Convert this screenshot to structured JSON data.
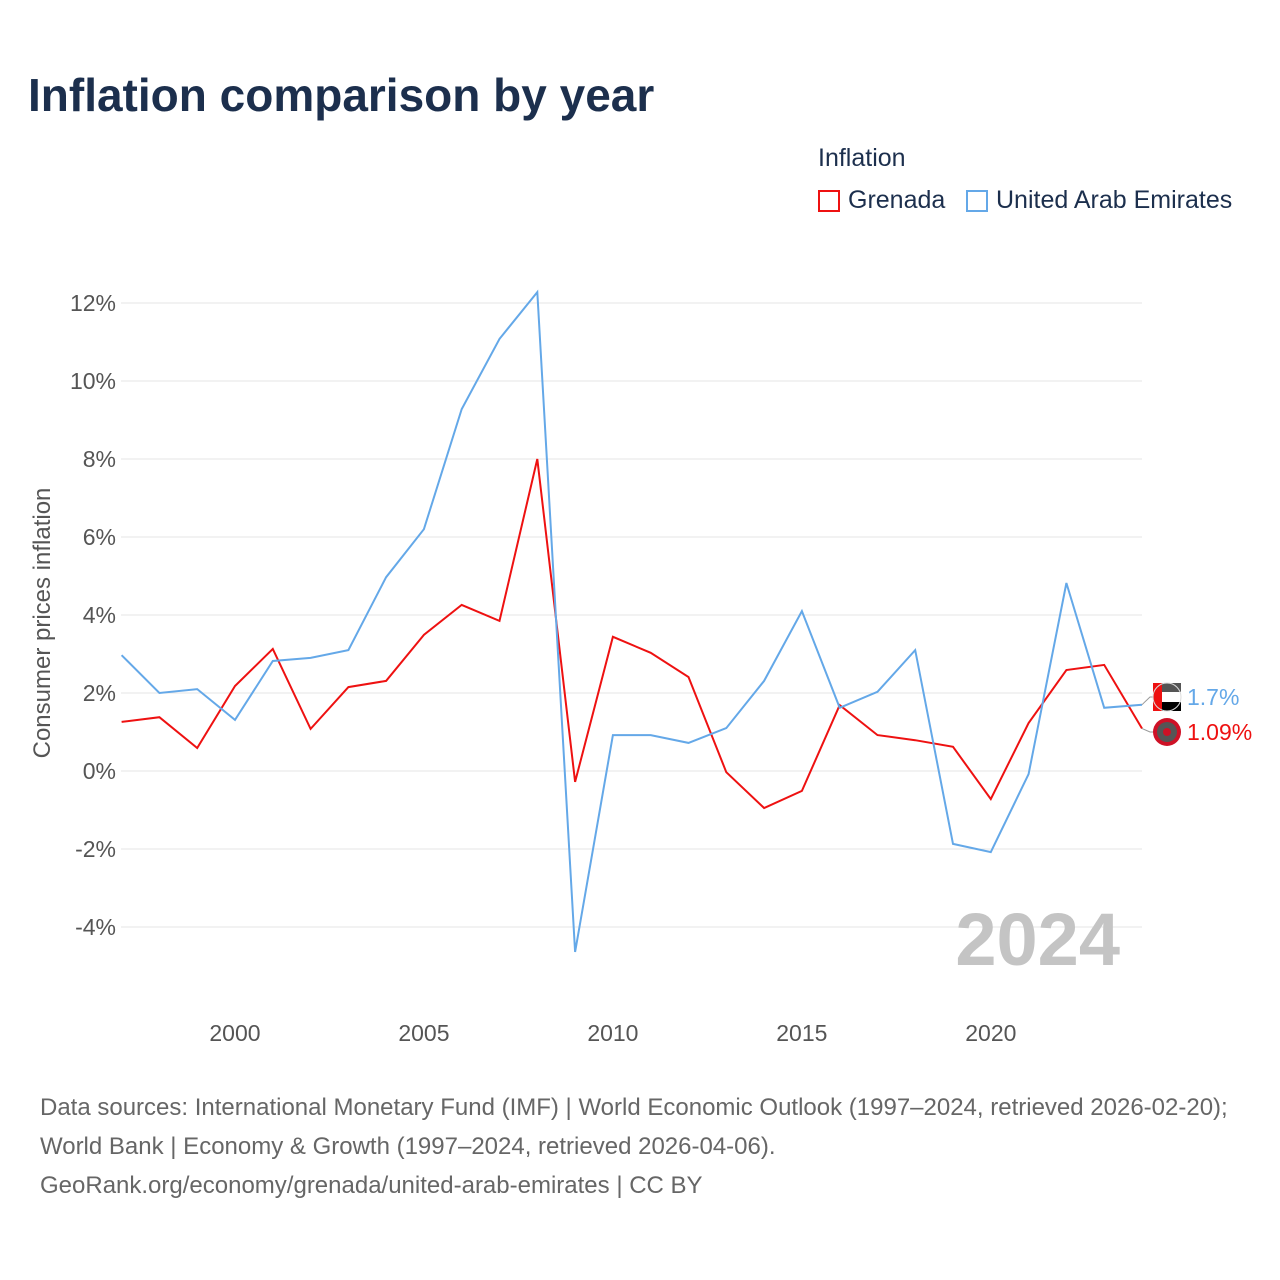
{
  "title": "Inflation comparison by year",
  "legend": {
    "title": "Inflation",
    "items": [
      {
        "label": "Grenada",
        "color": "#ee1111"
      },
      {
        "label": "United Arab Emirates",
        "color": "#64a8e8"
      }
    ]
  },
  "source_lines": [
    "Data sources: International Monetary Fund (IMF) | World Economic Outlook (1997–2024, retrieved 2026-02-20); World Bank | Economy & Growth (1997–2024, retrieved 2026-04-06).",
    "GeoRank.org/economy/grenada/united-arab-emirates | CC BY"
  ],
  "chart_data": {
    "type": "line",
    "title": "Inflation comparison by year",
    "ylabel": "Consumer prices inflation",
    "xlabel": "",
    "ylim": [
      -5.5,
      13
    ],
    "xlim": [
      1997,
      2024
    ],
    "yticks": [
      -4,
      -2,
      0,
      2,
      4,
      6,
      8,
      10,
      12
    ],
    "ytick_labels": [
      "-4%",
      "-2%",
      "0%",
      "2%",
      "4%",
      "6%",
      "8%",
      "10%",
      "12%"
    ],
    "xticks": [
      2000,
      2005,
      2010,
      2015,
      2020
    ],
    "xtick_labels": [
      "2000",
      "2005",
      "2010",
      "2015",
      "2020"
    ],
    "watermark_year": "2024",
    "x": [
      1997,
      1998,
      1999,
      2000,
      2001,
      2002,
      2003,
      2004,
      2005,
      2006,
      2007,
      2008,
      2009,
      2010,
      2011,
      2012,
      2013,
      2014,
      2015,
      2016,
      2017,
      2018,
      2019,
      2020,
      2021,
      2022,
      2023,
      2024
    ],
    "series": [
      {
        "name": "Grenada",
        "color": "#ee1111",
        "end_label": "1.09%",
        "values": [
          1.26,
          1.38,
          0.59,
          2.18,
          3.13,
          1.08,
          2.15,
          2.31,
          3.49,
          4.26,
          3.85,
          8.0,
          -0.28,
          3.44,
          3.03,
          2.41,
          -0.03,
          -0.95,
          -0.51,
          1.69,
          0.92,
          0.79,
          0.62,
          -0.72,
          1.23,
          2.59,
          2.72,
          1.09
        ]
      },
      {
        "name": "United Arab Emirates",
        "color": "#64a8e8",
        "end_label": "1.7%",
        "values": [
          2.97,
          2.0,
          2.1,
          1.31,
          2.82,
          2.9,
          3.1,
          4.97,
          6.2,
          9.28,
          11.08,
          12.28,
          -4.64,
          0.92,
          0.92,
          0.72,
          1.1,
          2.31,
          4.1,
          1.62,
          2.03,
          3.1,
          -1.87,
          -2.08,
          -0.08,
          4.82,
          1.62,
          1.7
        ]
      }
    ],
    "grid": true,
    "legend_position": "top-right"
  }
}
